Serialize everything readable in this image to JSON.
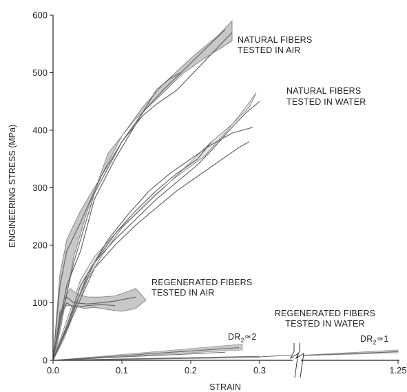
{
  "chart_data": {
    "type": "line",
    "title": "",
    "xlabel": "STRAIN",
    "ylabel": "ENGINEERING STRESS (MPa)",
    "xlim": [
      0,
      1.25
    ],
    "ylim": [
      0,
      600
    ],
    "x_axis_break": "between 0.3 and 1.25",
    "x_ticks": [
      "0.0",
      "0.1",
      "0.2",
      "0.3",
      "1.25"
    ],
    "y_ticks": [
      "0",
      "100",
      "200",
      "300",
      "400",
      "500",
      "600"
    ],
    "grid": false,
    "legend": "none",
    "colors": {
      "band_dark": "#c8c8c8",
      "band_light": "#e4e4e4",
      "curve": "#666666",
      "axis": "#222222"
    },
    "bands": [
      {
        "name": "natural-fibers-air",
        "label_lines": [
          "NATURAL FIBERS",
          "TESTED IN AIR"
        ],
        "fill": "dark",
        "upper": [
          [
            0,
            0
          ],
          [
            0.01,
            150
          ],
          [
            0.02,
            210
          ],
          [
            0.04,
            260
          ],
          [
            0.07,
            320
          ],
          [
            0.1,
            390
          ],
          [
            0.13,
            440
          ],
          [
            0.16,
            480
          ],
          [
            0.2,
            525
          ],
          [
            0.24,
            565
          ],
          [
            0.26,
            590
          ]
        ],
        "lower": [
          [
            0.26,
            555
          ],
          [
            0.22,
            525
          ],
          [
            0.19,
            500
          ],
          [
            0.16,
            465
          ],
          [
            0.12,
            420
          ],
          [
            0.08,
            360
          ],
          [
            0.05,
            260
          ],
          [
            0.03,
            180
          ],
          [
            0.015,
            80
          ],
          [
            0.005,
            20
          ]
        ],
        "curves": [
          [
            [
              0,
              0
            ],
            [
              0.01,
              130
            ],
            [
              0.02,
              190
            ],
            [
              0.04,
              240
            ],
            [
              0.07,
              320
            ],
            [
              0.1,
              380
            ],
            [
              0.13,
              430
            ],
            [
              0.16,
              470
            ],
            [
              0.19,
              505
            ],
            [
              0.22,
              540
            ],
            [
              0.25,
              575
            ]
          ],
          [
            [
              0,
              0
            ],
            [
              0.01,
              70
            ],
            [
              0.02,
              130
            ],
            [
              0.04,
              190
            ],
            [
              0.06,
              280
            ],
            [
              0.09,
              350
            ],
            [
              0.12,
              410
            ],
            [
              0.15,
              470
            ],
            [
              0.17,
              490
            ],
            [
              0.185,
              500
            ]
          ],
          [
            [
              0,
              0
            ],
            [
              0.015,
              90
            ],
            [
              0.03,
              170
            ],
            [
              0.06,
              290
            ],
            [
              0.1,
              380
            ],
            [
              0.13,
              425
            ],
            [
              0.15,
              445
            ],
            [
              0.18,
              470
            ],
            [
              0.2,
              495
            ],
            [
              0.22,
              520
            ],
            [
              0.24,
              545
            ],
            [
              0.26,
              570
            ]
          ]
        ]
      },
      {
        "name": "natural-fibers-water",
        "label_lines": [
          "NATURAL  FIBERS",
          "TESTED IN WATER"
        ],
        "fill": "light",
        "upper": [
          [
            0,
            0
          ],
          [
            0.02,
            70
          ],
          [
            0.04,
            140
          ],
          [
            0.06,
            180
          ],
          [
            0.09,
            220
          ],
          [
            0.12,
            255
          ],
          [
            0.15,
            290
          ],
          [
            0.18,
            320
          ],
          [
            0.22,
            355
          ],
          [
            0.25,
            395
          ],
          [
            0.28,
            440
          ],
          [
            0.295,
            465
          ]
        ],
        "lower": [
          [
            0.285,
            440
          ],
          [
            0.26,
            410
          ],
          [
            0.23,
            380
          ],
          [
            0.2,
            345
          ],
          [
            0.17,
            310
          ],
          [
            0.13,
            265
          ],
          [
            0.1,
            230
          ],
          [
            0.07,
            180
          ],
          [
            0.05,
            140
          ],
          [
            0.03,
            80
          ],
          [
            0.015,
            35
          ]
        ],
        "curves": [
          [
            [
              0,
              0
            ],
            [
              0.02,
              60
            ],
            [
              0.04,
              130
            ],
            [
              0.06,
              170
            ],
            [
              0.09,
              210
            ],
            [
              0.12,
              245
            ],
            [
              0.15,
              280
            ],
            [
              0.18,
              310
            ],
            [
              0.21,
              340
            ],
            [
              0.23,
              365
            ],
            [
              0.26,
              405
            ],
            [
              0.28,
              430
            ],
            [
              0.3,
              450
            ]
          ],
          [
            [
              0,
              0
            ],
            [
              0.025,
              70
            ],
            [
              0.05,
              150
            ],
            [
              0.08,
              210
            ],
            [
              0.11,
              255
            ],
            [
              0.14,
              295
            ],
            [
              0.17,
              325
            ],
            [
              0.2,
              350
            ],
            [
              0.23,
              375
            ],
            [
              0.26,
              395
            ],
            [
              0.29,
              405
            ]
          ],
          [
            [
              0,
              0
            ],
            [
              0.03,
              80
            ],
            [
              0.06,
              160
            ],
            [
              0.09,
              200
            ],
            [
              0.12,
              235
            ],
            [
              0.15,
              265
            ],
            [
              0.18,
              295
            ],
            [
              0.21,
              320
            ],
            [
              0.24,
              345
            ],
            [
              0.27,
              370
            ],
            [
              0.285,
              380
            ]
          ],
          [
            [
              0,
              0
            ],
            [
              0.03,
              90
            ],
            [
              0.06,
              170
            ],
            [
              0.09,
              220
            ],
            [
              0.12,
              260
            ],
            [
              0.15,
              295
            ],
            [
              0.18,
              325
            ],
            [
              0.21,
              350
            ],
            [
              0.23,
              380
            ]
          ]
        ]
      },
      {
        "name": "regenerated-fibers-air",
        "label_lines": [
          "REGENERATED FIBERS",
          "TESTED IN AIR"
        ],
        "fill": "dark",
        "upper": [
          [
            0,
            0
          ],
          [
            0.01,
            70
          ],
          [
            0.02,
            115
          ],
          [
            0.025,
            125
          ],
          [
            0.035,
            115
          ],
          [
            0.05,
            110
          ],
          [
            0.07,
            110
          ],
          [
            0.09,
            112
          ],
          [
            0.11,
            120
          ],
          [
            0.12,
            125
          ]
        ],
        "lower": [
          [
            0.135,
            105
          ],
          [
            0.12,
            90
          ],
          [
            0.1,
            85
          ],
          [
            0.08,
            88
          ],
          [
            0.06,
            92
          ],
          [
            0.045,
            90
          ],
          [
            0.03,
            95
          ],
          [
            0.02,
            95
          ],
          [
            0.01,
            85
          ],
          [
            0.005,
            40
          ]
        ],
        "curves": [
          [
            [
              0,
              0
            ],
            [
              0.01,
              80
            ],
            [
              0.02,
              110
            ],
            [
              0.03,
              100
            ],
            [
              0.05,
              98
            ],
            [
              0.07,
              100
            ],
            [
              0.09,
              103
            ],
            [
              0.12,
              110
            ]
          ],
          [
            [
              0,
              0
            ],
            [
              0.01,
              75
            ],
            [
              0.02,
              100
            ],
            [
              0.03,
              92
            ],
            [
              0.05,
              95
            ],
            [
              0.07,
              97
            ],
            [
              0.09,
              95
            ]
          ]
        ]
      }
    ],
    "water_regenerated": {
      "label_lines": [
        "REGENERATED FIBERS",
        "TESTED IN WATER"
      ],
      "dr2_left_label": "DR",
      "dr2_left_sub": "2",
      "dr2_left_suffix": "≃2",
      "dr2_right_label": "DR",
      "dr2_right_sub": "2",
      "dr2_right_suffix": "≃1",
      "segment_left": {
        "band": [
          [
            0,
            0
          ],
          [
            0.275,
            28
          ],
          [
            0.275,
            18
          ],
          [
            0,
            0
          ]
        ],
        "curves": [
          [
            [
              0,
              0
            ],
            [
              0.27,
              22
            ]
          ],
          [
            [
              0,
              0
            ],
            [
              0.25,
              14
            ]
          ],
          [
            [
              0,
              0
            ],
            [
              0.3,
              7
            ]
          ],
          [
            [
              0,
              0
            ],
            [
              0.3,
              5
            ]
          ]
        ]
      },
      "segment_right_end_stress": [
        13,
        18
      ]
    }
  }
}
